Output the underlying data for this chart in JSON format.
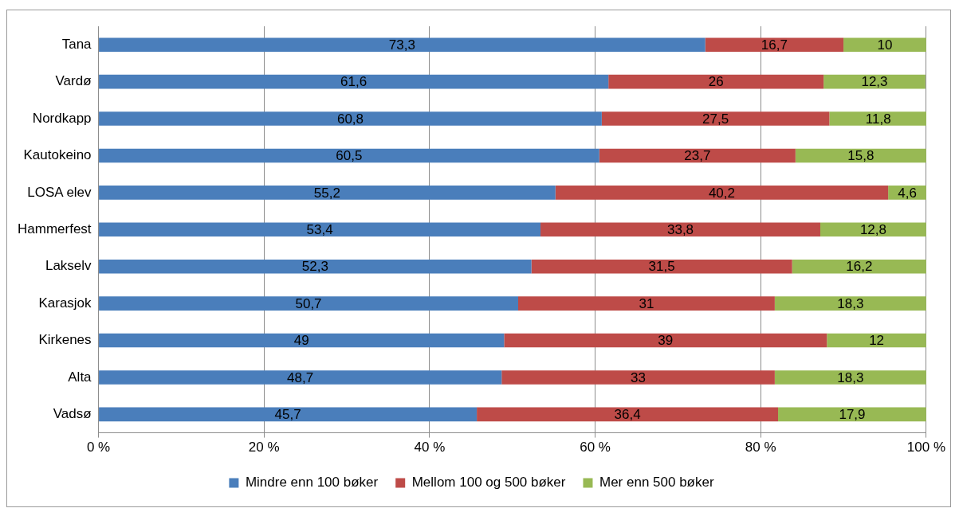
{
  "chart_data": {
    "type": "bar",
    "orientation": "horizontal",
    "stacked": true,
    "categories": [
      "Tana",
      "Vardø",
      "Nordkapp",
      "Kautokeino",
      "LOSA elev",
      "Hammerfest",
      "Lakselv",
      "Karasjok",
      "Kirkenes",
      "Alta",
      "Vadsø"
    ],
    "series": [
      {
        "name": "Mindre enn 100 bøker",
        "color": "#4a7ebb",
        "values": [
          73.3,
          61.6,
          60.8,
          60.5,
          55.2,
          53.4,
          52.3,
          50.7,
          49,
          48.7,
          45.7
        ],
        "value_labels": [
          "73,3",
          "61,6",
          "60,8",
          "60,5",
          "55,2",
          "53,4",
          "52,3",
          "50,7",
          "49",
          "48,7",
          "45,7"
        ]
      },
      {
        "name": "Mellom 100 og 500 bøker",
        "color": "#be4b48",
        "values": [
          16.7,
          26,
          27.5,
          23.7,
          40.2,
          33.8,
          31.5,
          31,
          39,
          33,
          36.4
        ],
        "value_labels": [
          "16,7",
          "26",
          "27,5",
          "23,7",
          "40,2",
          "33,8",
          "31,5",
          "31",
          "39",
          "33",
          "36,4"
        ]
      },
      {
        "name": "Mer enn 500 bøker",
        "color": "#98b954",
        "values": [
          10,
          12.3,
          11.8,
          15.8,
          4.6,
          12.8,
          16.2,
          18.3,
          12,
          18.3,
          17.9
        ],
        "value_labels": [
          "10",
          "12,3",
          "11,8",
          "15,8",
          "4,6",
          "12,8",
          "16,2",
          "18,3",
          "12",
          "18,3",
          "17,9"
        ]
      }
    ],
    "xlim": [
      0,
      100
    ],
    "xticks": [
      {
        "value": 0,
        "label": "0 %"
      },
      {
        "value": 20,
        "label": "20 %"
      },
      {
        "value": 40,
        "label": "40 %"
      },
      {
        "value": 60,
        "label": "60 %"
      },
      {
        "value": 80,
        "label": "80 %"
      },
      {
        "value": 100,
        "label": "100 %"
      }
    ],
    "grid": "x",
    "legend": "bottom"
  }
}
